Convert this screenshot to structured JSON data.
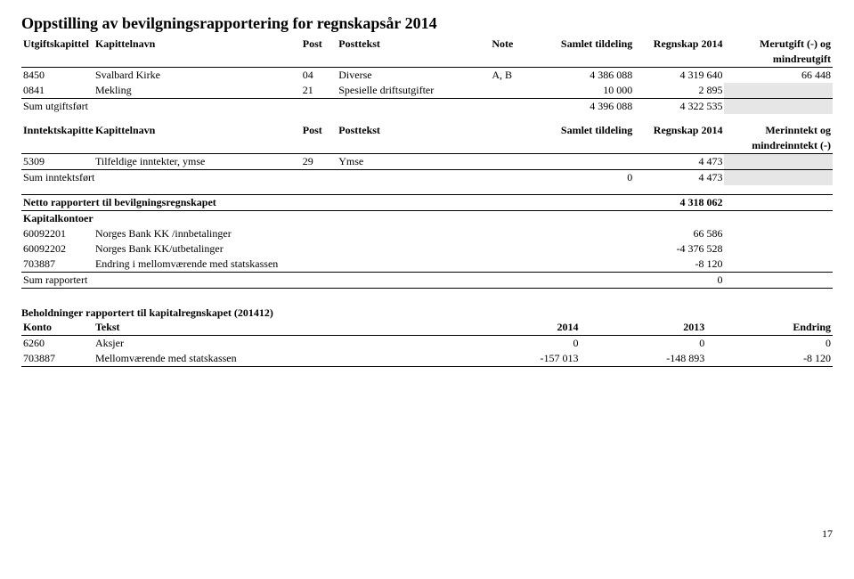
{
  "title": "Oppstilling av bevilgningsrapportering for regnskapsår 2014",
  "utgift": {
    "headers": {
      "kapittel": "Utgiftskapittel",
      "navn": "Kapittelnavn",
      "post": "Post",
      "posttekst": "Posttekst",
      "note": "Note",
      "samlet": "Samlet tildeling",
      "regnskap": "Regnskap 2014",
      "mer_l1": "Merutgift (-) og",
      "mer_l2": "mindreutgift"
    },
    "rows": [
      {
        "kap": "8450",
        "navn": "Svalbard Kirke",
        "post": "04",
        "ptxt": "Diverse",
        "note": "A, B",
        "samlet": "4 386 088",
        "regn": "4 319 640",
        "mer": "66 448"
      },
      {
        "kap": "0841",
        "navn": "Mekling",
        "post": "21",
        "ptxt": "Spesielle driftsutgifter",
        "note": "",
        "samlet": "10 000",
        "regn": "2 895",
        "mer": ""
      }
    ],
    "sum": {
      "label": "Sum utgiftsført",
      "samlet": "4 396 088",
      "regn": "4 322 535"
    }
  },
  "inntekt": {
    "headers": {
      "kapittel": "Inntektskapittel",
      "navn": "Kapittelnavn",
      "post": "Post",
      "posttekst": "Posttekst",
      "samlet": "Samlet tildeling",
      "regnskap": "Regnskap 2014",
      "mer_l1": "Merinntekt og",
      "mer_l2": "mindreinntekt (-)"
    },
    "rows": [
      {
        "kap": "5309",
        "navn": "Tilfeldige inntekter, ymse",
        "post": "29",
        "ptxt": "Ymse",
        "samlet": "",
        "regn": "4 473",
        "mer": ""
      }
    ],
    "sum": {
      "label": "Sum inntektsført",
      "samlet": "0",
      "regn": "4 473"
    }
  },
  "netto": {
    "label": "Netto rapportert til bevilgningsregnskapet",
    "value": "4 318 062",
    "kk_label": "Kapitalkontoer",
    "rows": [
      {
        "kap": "60092201",
        "navn": "Norges Bank KK /innbetalinger",
        "val": "66 586"
      },
      {
        "kap": "60092202",
        "navn": "Norges Bank KK/utbetalinger",
        "val": "-4 376 528"
      },
      {
        "kap": "703887",
        "navn": "Endring i mellomværende med statskassen",
        "val": "-8 120"
      }
    ],
    "sum": {
      "label": "Sum rapportert",
      "val": "0"
    }
  },
  "behold": {
    "title": "Beholdninger rapportert til kapitalregnskapet (201412)",
    "headers": {
      "konto": "Konto",
      "tekst": "Tekst",
      "y2014": "2014",
      "y2013": "2013",
      "endring": "Endring"
    },
    "rows": [
      {
        "konto": "6260",
        "tekst": "Aksjer",
        "y2014": "0",
        "y2013": "0",
        "endr": "0"
      },
      {
        "konto": "703887",
        "tekst": "Mellomværende med statskassen",
        "y2014": "-157 013",
        "y2013": "-148 893",
        "endr": "-8 120"
      }
    ]
  },
  "page": "17",
  "colors": {
    "shade": "#e6e6e6",
    "text": "#000000",
    "bg": "#ffffff"
  }
}
